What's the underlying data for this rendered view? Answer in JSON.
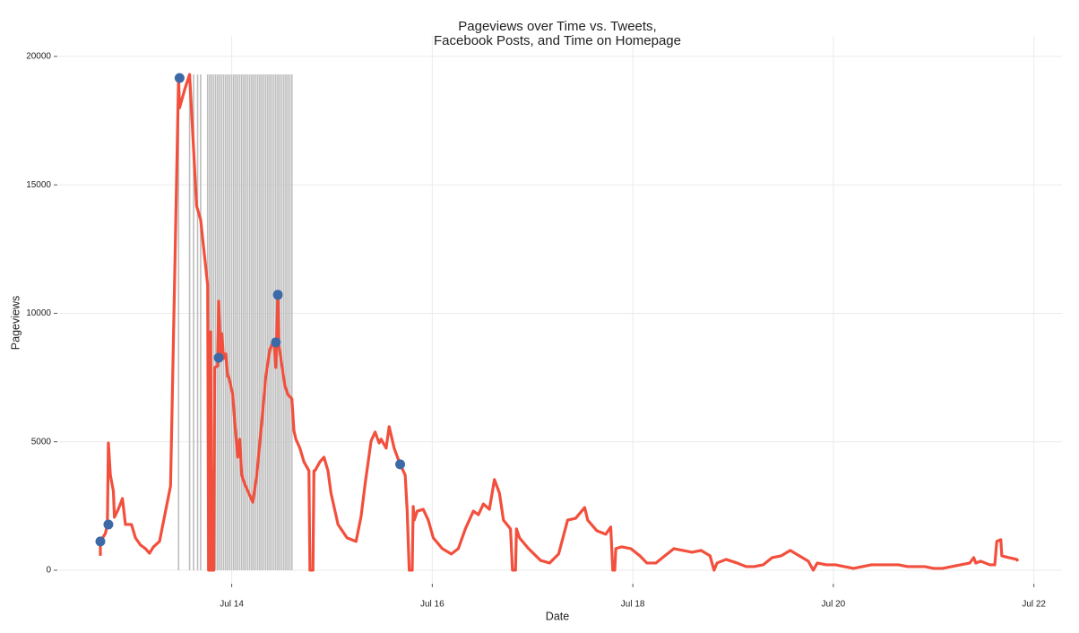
{
  "chart_data": {
    "type": "line",
    "title": [
      "Pageviews over Time vs. Tweets,",
      "Facebook Posts, and Time on Homepage"
    ],
    "x_label": "Date",
    "y_label": "Pageviews",
    "xlim": [
      12.27,
      22.28
    ],
    "ylim": [
      -490,
      20800
    ],
    "xticks": [
      {
        "value": 14,
        "label": "Jul 14"
      },
      {
        "value": 16,
        "label": "Jul 16"
      },
      {
        "value": 18,
        "label": "Jul 18"
      },
      {
        "value": 20,
        "label": "Jul 20"
      },
      {
        "value": 22,
        "label": "Jul 22"
      }
    ],
    "yticks": [
      0,
      5000,
      10000,
      15000,
      20000
    ],
    "grid": true,
    "layers": [
      {
        "type": "vline",
        "color": "#bdbdbd",
        "top": 19300,
        "x": [
          13.47,
          13.58,
          13.62,
          13.66,
          13.69,
          13.76,
          13.78,
          13.8,
          13.82,
          13.84,
          13.86,
          13.88,
          13.9,
          13.92,
          13.94,
          13.96,
          13.98,
          14.0,
          14.02,
          14.04,
          14.06,
          14.08,
          14.1,
          14.12,
          14.14,
          14.16,
          14.18,
          14.2,
          14.22,
          14.24,
          14.26,
          14.28,
          14.3,
          14.32,
          14.34,
          14.36,
          14.38,
          14.4,
          14.42,
          14.44,
          14.46,
          14.48,
          14.5,
          14.52,
          14.54,
          14.56,
          14.58,
          14.6
        ]
      },
      {
        "type": "line",
        "color": "#f24f3c",
        "x": [
          12.69,
          12.69,
          12.74,
          12.76,
          12.77,
          12.79,
          12.82,
          12.83,
          12.86,
          12.88,
          12.91,
          12.94,
          13.0,
          13.04,
          13.09,
          13.14,
          13.18,
          13.22,
          13.28,
          13.39,
          13.47,
          13.48,
          13.53,
          13.58,
          13.65,
          13.69,
          13.76,
          13.77,
          13.78,
          13.79,
          13.8,
          13.82,
          13.83,
          13.86,
          13.87,
          13.89,
          13.9,
          13.92,
          13.94,
          13.96,
          13.97,
          14.01,
          14.03,
          14.06,
          14.08,
          14.1,
          14.13,
          14.17,
          14.21,
          14.25,
          14.3,
          14.34,
          14.38,
          14.42,
          14.44,
          14.46,
          14.47,
          14.49,
          14.53,
          14.56,
          14.6,
          14.62,
          14.64,
          14.68,
          14.72,
          14.77,
          14.78,
          14.81,
          14.82,
          14.83,
          14.88,
          14.92,
          14.96,
          14.99,
          15.06,
          15.15,
          15.24,
          15.29,
          15.33,
          15.39,
          15.43,
          15.47,
          15.49,
          15.54,
          15.57,
          15.62,
          15.67,
          15.73,
          15.75,
          15.77,
          15.8,
          15.81,
          15.82,
          15.85,
          15.91,
          15.96,
          16.01,
          16.1,
          16.19,
          16.26,
          16.33,
          16.41,
          16.46,
          16.51,
          16.57,
          16.62,
          16.67,
          16.71,
          16.78,
          16.8,
          16.83,
          16.84,
          16.87,
          16.96,
          17.08,
          17.17,
          17.26,
          17.35,
          17.43,
          17.52,
          17.55,
          17.64,
          17.73,
          17.78,
          17.8,
          17.82,
          17.83,
          17.89,
          17.98,
          18.07,
          18.14,
          18.23,
          18.32,
          18.41,
          18.5,
          18.59,
          18.68,
          18.77,
          18.81,
          18.84,
          18.93,
          19.04,
          19.13,
          19.21,
          19.3,
          19.39,
          19.48,
          19.57,
          19.66,
          19.75,
          19.8,
          19.84,
          19.93,
          20.02,
          20.11,
          20.2,
          20.29,
          20.38,
          20.47,
          20.56,
          20.65,
          20.74,
          20.82,
          20.91,
          21.0,
          21.09,
          21.18,
          21.27,
          21.36,
          21.4,
          21.42,
          21.47,
          21.56,
          21.61,
          21.63,
          21.67,
          21.68,
          21.75,
          21.83,
          21.84
        ],
        "values": [
          560,
          1120,
          1430,
          1780,
          4950,
          3700,
          3070,
          2060,
          2300,
          2480,
          2790,
          1780,
          1780,
          1260,
          980,
          840,
          660,
          910,
          1120,
          3280,
          19160,
          18000,
          18700,
          19300,
          14170,
          13650,
          11100,
          0,
          0,
          9280,
          0,
          0,
          7890,
          7950,
          10470,
          8240,
          9210,
          8240,
          8420,
          7540,
          7540,
          6840,
          5790,
          4400,
          5100,
          3700,
          3350,
          3000,
          2650,
          3700,
          5790,
          7540,
          8590,
          8940,
          7890,
          10750,
          8760,
          8240,
          7190,
          6840,
          6670,
          5440,
          5100,
          4750,
          4220,
          3870,
          0,
          0,
          3870,
          3870,
          4220,
          4400,
          3870,
          3000,
          1780,
          1260,
          1120,
          2090,
          3350,
          5030,
          5380,
          4950,
          5100,
          4750,
          5590,
          4750,
          4220,
          3700,
          2300,
          0,
          0,
          2480,
          1950,
          2300,
          2370,
          1950,
          1260,
          840,
          630,
          840,
          1610,
          2300,
          2160,
          2580,
          2370,
          3530,
          3000,
          1950,
          1610,
          0,
          0,
          1610,
          1260,
          840,
          380,
          280,
          630,
          1950,
          2020,
          2440,
          1950,
          1540,
          1400,
          1680,
          0,
          0,
          840,
          910,
          840,
          560,
          280,
          280,
          560,
          840,
          770,
          700,
          770,
          560,
          0,
          280,
          420,
          280,
          140,
          140,
          210,
          490,
          560,
          770,
          560,
          350,
          0,
          280,
          210,
          210,
          140,
          70,
          140,
          210,
          210,
          210,
          210,
          140,
          140,
          140,
          70,
          70,
          140,
          210,
          280,
          490,
          280,
          350,
          210,
          210,
          1120,
          1190,
          560,
          490,
          420,
          350
        ]
      },
      {
        "type": "scatter",
        "color": "#3d6aa6",
        "x": [
          12.69,
          12.77,
          13.48,
          13.87,
          14.44,
          14.46,
          15.68
        ],
        "values": [
          1120,
          1780,
          19160,
          8270,
          8870,
          10720,
          4120
        ]
      }
    ]
  }
}
